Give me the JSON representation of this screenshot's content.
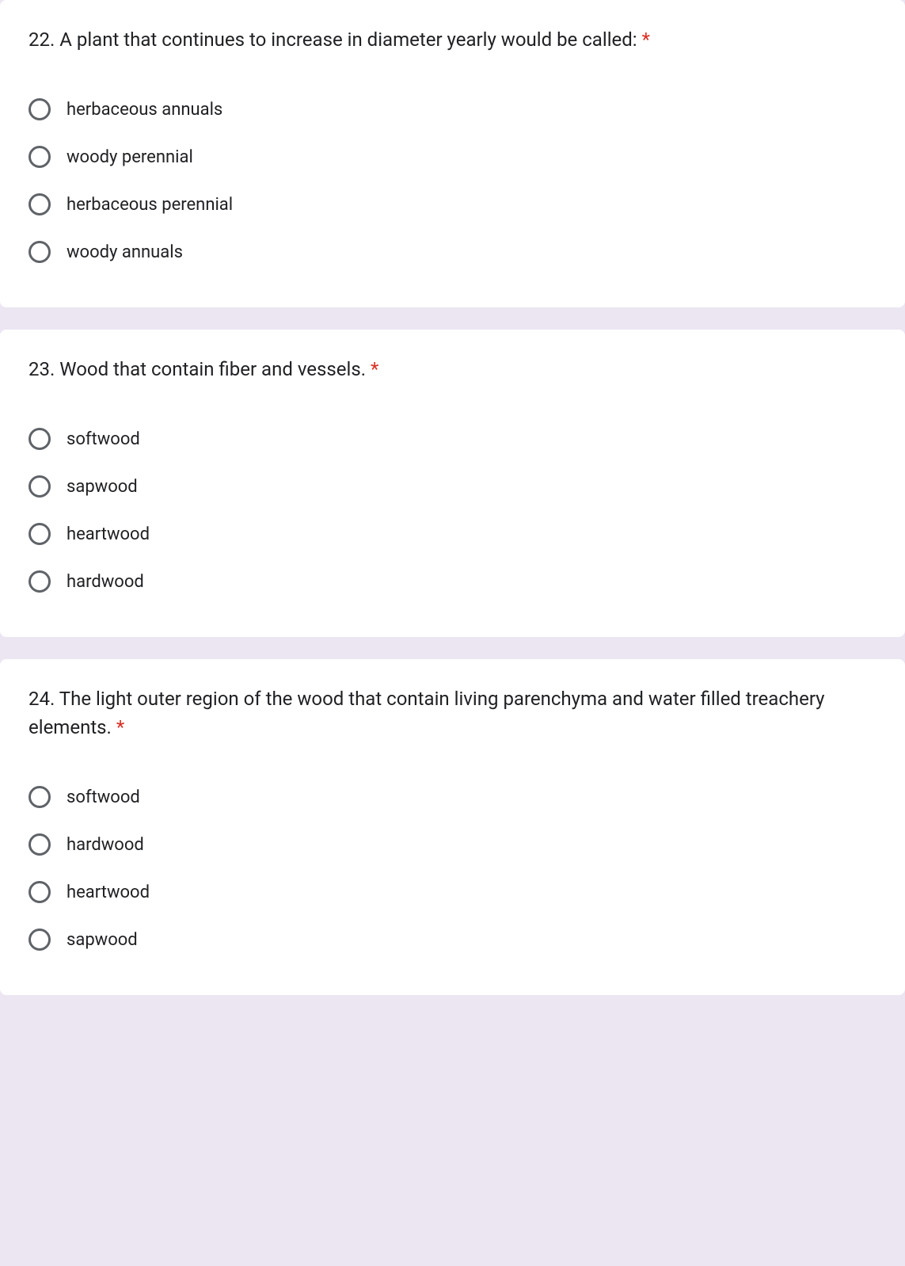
{
  "colors": {
    "background": "#ece6f3",
    "card_background": "#ffffff",
    "text": "#202124",
    "radio_border": "#5f6368",
    "required": "#d93025"
  },
  "typography": {
    "title_fontsize": 24,
    "option_fontsize": 22,
    "font_family": "Roboto, Arial, sans-serif"
  },
  "questions": [
    {
      "title": "22. A plant that continues to increase in diameter yearly would be called: ",
      "required": true,
      "options": [
        "herbaceous annuals",
        "woody perennial",
        "herbaceous perennial",
        "woody annuals"
      ]
    },
    {
      "title": "23. Wood that contain fiber and vessels. ",
      "required": true,
      "options": [
        "softwood",
        "sapwood",
        "heartwood",
        "hardwood"
      ]
    },
    {
      "title": "24. The light outer region of the wood that contain living parenchyma and water filled treachery elements. ",
      "required": true,
      "options": [
        "softwood",
        "hardwood",
        "heartwood",
        "sapwood"
      ]
    }
  ]
}
